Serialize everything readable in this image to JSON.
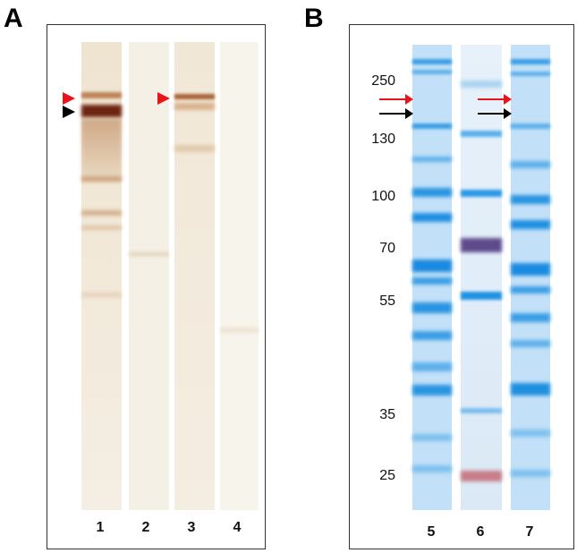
{
  "panels": {
    "a": {
      "letter": "A",
      "lane_numbers": [
        "1",
        "2",
        "3",
        "4"
      ]
    },
    "b": {
      "letter": "B",
      "lane_numbers": [
        "5",
        "6",
        "7"
      ],
      "mw_markers": [
        "250",
        "130",
        "100",
        "70",
        "55",
        "35",
        "25"
      ]
    }
  },
  "colors": {
    "red_marker": "#e8141b",
    "black_marker": "#000000",
    "silver_strip": "#f3ece0",
    "silver_band": "#7a2a0c",
    "coomassie_strip": "#b9dbf5",
    "coomassie_band": "#1f8fe0",
    "marker_purple": "#5e4b8c",
    "marker_red": "#c77c86"
  }
}
